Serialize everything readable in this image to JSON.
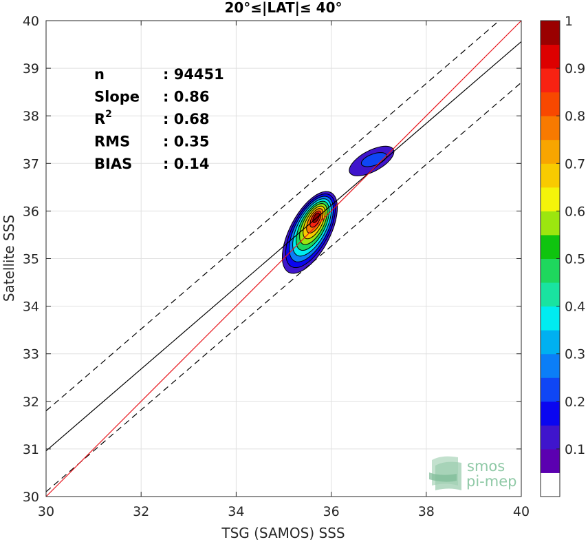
{
  "chart_data": {
    "type": "scatter",
    "title": "20°≤|LAT|≤ 40°",
    "xlabel": "TSG (SAMOS) SSS",
    "ylabel": "Satellite SSS",
    "xlim": [
      30,
      40
    ],
    "ylim": [
      30,
      40
    ],
    "xticks": [
      "30",
      "32",
      "34",
      "36",
      "38",
      "40"
    ],
    "yticks": [
      "30",
      "31",
      "32",
      "33",
      "34",
      "35",
      "36",
      "37",
      "38",
      "39",
      "40"
    ],
    "grid": true,
    "stats": [
      {
        "label": "n",
        "value": ": 94451"
      },
      {
        "label": "Slope",
        "value": ": 0.86"
      },
      {
        "label": "R",
        "sup": "2",
        "value": ": 0.68"
      },
      {
        "label": "RMS",
        "value": ": 0.35"
      },
      {
        "label": "BIAS",
        "value": ": 0.14"
      }
    ],
    "lines": {
      "identity": {
        "slope": 1,
        "intercept": 0,
        "color": "#e8141b"
      },
      "fit": {
        "slope": 0.86,
        "intercept": 5.16,
        "color": "#000000"
      },
      "fit_upper": {
        "slope": 0.86,
        "intercept": 6.0,
        "color": "#000000",
        "style": "dashed"
      },
      "fit_lower": {
        "slope": 0.86,
        "intercept": 4.3,
        "color": "#000000",
        "style": "dashed"
      }
    },
    "density_contours": {
      "levels": [
        0.1,
        0.2,
        0.3,
        0.4,
        0.5,
        0.6,
        0.7,
        0.8,
        0.9
      ],
      "peaks": [
        {
          "x": 35.7,
          "y": 35.9,
          "value": 1.0
        },
        {
          "x": 36.85,
          "y": 37.05,
          "value": 0.25
        }
      ]
    },
    "colorbar": {
      "ticks": [
        "0.1",
        "0.2",
        "0.3",
        "0.4",
        "0.5",
        "0.6",
        "0.7",
        "0.8",
        "0.9",
        "1"
      ],
      "colors": [
        "#ffffff",
        "#5b00b0",
        "#3f15cc",
        "#0a06f0",
        "#0f46f5",
        "#0b7ef7",
        "#00b0f0",
        "#00ecf0",
        "#19e3a0",
        "#1ed75d",
        "#0fc40f",
        "#9ce60f",
        "#f4f40a",
        "#f8cb00",
        "#f8a500",
        "#f87a00",
        "#f84800",
        "#f82212",
        "#dd0000",
        "#9a0000"
      ]
    }
  },
  "watermark": {
    "line1": "smos",
    "line2": "pi-mep"
  }
}
